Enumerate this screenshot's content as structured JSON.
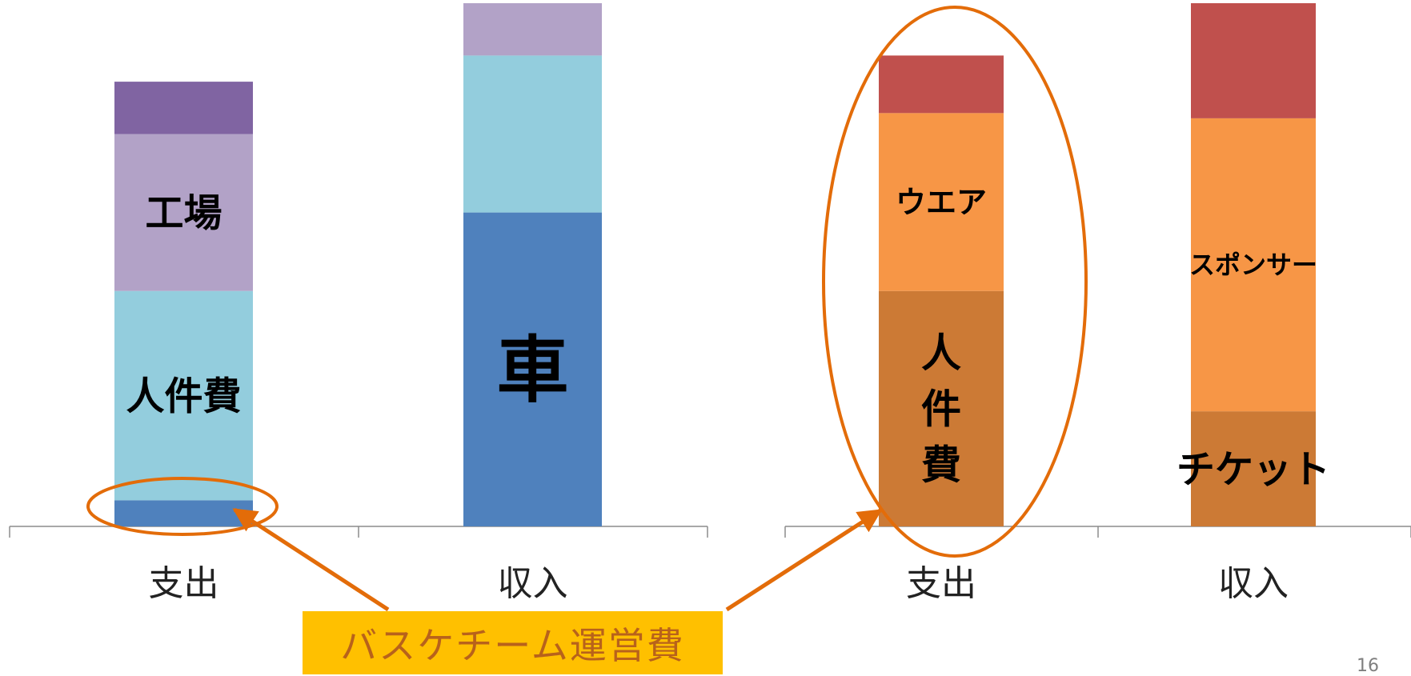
{
  "chart_data": [
    {
      "type": "bar",
      "stacked": true,
      "categories": [
        "支出",
        "収入"
      ],
      "ylim": [
        0,
        100
      ],
      "grid": false,
      "legend": "none",
      "series": [
        {
          "values": [
            5,
            60
          ],
          "color": "#4f81bd"
        },
        {
          "values": [
            40,
            30
          ],
          "color": "#93cddd"
        },
        {
          "values": [
            30,
            10
          ],
          "color": "#b2a2c7"
        },
        {
          "values": [
            10,
            0
          ],
          "color": "#8064a2"
        }
      ],
      "bar_labels": [
        {
          "category": "支出",
          "series_index": 1,
          "text": "人件費"
        },
        {
          "category": "支出",
          "series_index": 2,
          "text": "工場"
        },
        {
          "category": "収入",
          "series_index": 0,
          "text": "車"
        }
      ]
    },
    {
      "type": "bar",
      "stacked": true,
      "categories": [
        "支出",
        "収入"
      ],
      "ylim": [
        0,
        100
      ],
      "grid": false,
      "legend": "none",
      "series": [
        {
          "values": [
            45,
            22
          ],
          "color": "#cc7a35"
        },
        {
          "values": [
            34,
            56
          ],
          "color": "#f79646"
        },
        {
          "values": [
            11,
            22
          ],
          "color": "#c0504d"
        }
      ],
      "bar_labels": [
        {
          "category": "支出",
          "series_index": 0,
          "text": "人\n件\n費"
        },
        {
          "category": "支出",
          "series_index": 1,
          "text": "ウエア"
        },
        {
          "category": "収入",
          "series_index": 1,
          "text": "スポンサー"
        },
        {
          "category": "収入",
          "series_index": 0,
          "text": "チケット"
        }
      ]
    }
  ],
  "callout": {
    "text": "バスケチーム運営費",
    "bg_color": "#ffc000",
    "text_color": "#b8621b"
  },
  "accent_color": "#e36c09",
  "page_number": "16"
}
